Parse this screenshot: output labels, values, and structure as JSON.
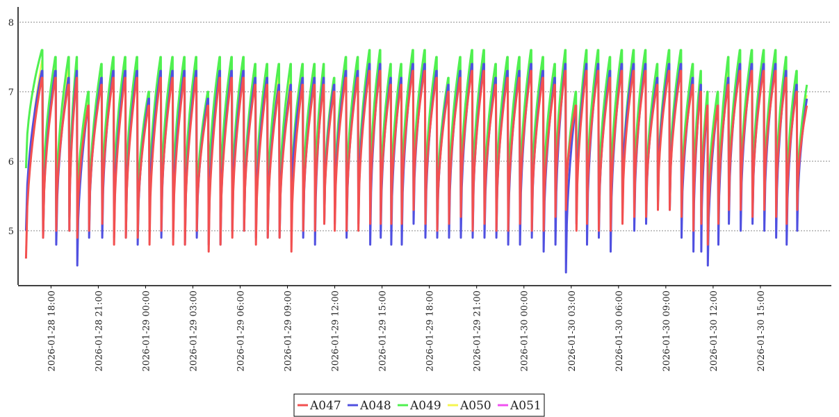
{
  "chart_data": {
    "type": "line",
    "title": "",
    "xlabel": "",
    "ylabel": "",
    "grid": {
      "y": true,
      "x": false,
      "style": "dotted"
    },
    "legend_position": "bottom-center",
    "y_range": [
      4.22,
      8.22
    ],
    "y_ticks": [
      5,
      6,
      7,
      8
    ],
    "x_range": [
      "2026-01-28 16:00",
      "2026-01-30 19:30"
    ],
    "x_tick_labels": [
      "2026-01-28 18:00",
      "2026-01-28 21:00",
      "2026-01-29 00:00",
      "2026-01-29 03:00",
      "2026-01-29 06:00",
      "2026-01-29 09:00",
      "2026-01-29 12:00",
      "2026-01-29 15:00",
      "2026-01-29 18:00",
      "2026-01-29 21:00",
      "2026-01-30 00:00",
      "2026-01-30 03:00",
      "2026-01-30 06:00",
      "2026-01-30 09:00",
      "2026-01-30 12:00",
      "2026-01-30 15:00"
    ],
    "series": [
      {
        "name": "A047",
        "color": "#f25050"
      },
      {
        "name": "A048",
        "color": "#5050e0"
      },
      {
        "name": "A049",
        "color": "#50f050"
      },
      {
        "name": "A050",
        "color": "#f5f550"
      },
      {
        "name": "A051",
        "color": "#f050f0"
      }
    ],
    "cycles": [
      {
        "t": "2026-01-28 16:25",
        "r": 6.9,
        "A047": [
          4.6,
          7.2
        ],
        "A048": [
          5.0,
          7.3
        ],
        "A049": [
          5.9,
          7.6
        ]
      },
      {
        "t": "2026-01-28 17:30",
        "r": 7.0,
        "A047": [
          4.9,
          7.2
        ],
        "A048": [
          4.9,
          7.3
        ],
        "A049": [
          5.3,
          7.5
        ]
      },
      {
        "t": "2026-01-28 18:20",
        "r": 7.0,
        "A047": [
          5.0,
          7.1
        ],
        "A048": [
          4.8,
          7.2
        ],
        "A049": [
          5.2,
          7.5
        ]
      },
      {
        "t": "2026-01-28 19:10",
        "r": 7.1,
        "A047": [
          5.0,
          7.2
        ],
        "A048": [
          5.0,
          7.3
        ],
        "A049": [
          5.2,
          7.5
        ]
      },
      {
        "t": "2026-01-28 19:40",
        "r": 7.0,
        "A047": [
          4.9,
          6.8
        ],
        "A048": [
          4.5,
          6.8
        ],
        "A049": [
          5.2,
          7.0
        ]
      },
      {
        "t": "2026-01-28 20:25",
        "r": 7.1,
        "A047": [
          5.0,
          7.1
        ],
        "A048": [
          4.9,
          7.2
        ],
        "A049": [
          5.1,
          7.4
        ]
      },
      {
        "t": "2026-01-28 21:15",
        "r": 7.1,
        "A047": [
          5.1,
          7.2
        ],
        "A048": [
          4.9,
          7.3
        ],
        "A049": [
          5.3,
          7.5
        ]
      },
      {
        "t": "2026-01-28 22:00",
        "r": 7.1,
        "A047": [
          4.8,
          7.2
        ],
        "A048": [
          4.9,
          7.3
        ],
        "A049": [
          5.3,
          7.5
        ]
      },
      {
        "t": "2026-01-28 22:45",
        "r": 7.1,
        "A047": [
          4.9,
          7.2
        ],
        "A048": [
          4.9,
          7.3
        ],
        "A049": [
          5.3,
          7.5
        ]
      },
      {
        "t": "2026-01-28 23:30",
        "r": 7.0,
        "A047": [
          4.9,
          6.8
        ],
        "A048": [
          4.8,
          6.9
        ],
        "A049": [
          5.2,
          7.0
        ]
      },
      {
        "t": "2026-01-29 00:15",
        "r": 7.1,
        "A047": [
          4.8,
          7.2
        ],
        "A048": [
          5.0,
          7.3
        ],
        "A049": [
          5.3,
          7.5
        ]
      },
      {
        "t": "2026-01-29 01:00",
        "r": 7.1,
        "A047": [
          5.0,
          7.2
        ],
        "A048": [
          4.9,
          7.3
        ],
        "A049": [
          5.3,
          7.5
        ]
      },
      {
        "t": "2026-01-29 01:45",
        "r": 7.1,
        "A047": [
          4.8,
          7.2
        ],
        "A048": [
          4.9,
          7.3
        ],
        "A049": [
          5.3,
          7.5
        ]
      },
      {
        "t": "2026-01-29 02:30",
        "r": 7.1,
        "A047": [
          4.8,
          7.2
        ],
        "A048": [
          4.8,
          7.3
        ],
        "A049": [
          5.2,
          7.5
        ]
      },
      {
        "t": "2026-01-29 03:15",
        "r": 7.0,
        "A047": [
          5.0,
          6.8
        ],
        "A048": [
          4.9,
          6.9
        ],
        "A049": [
          5.2,
          7.0
        ]
      },
      {
        "t": "2026-01-29 04:00",
        "r": 7.1,
        "A047": [
          4.7,
          7.2
        ],
        "A048": [
          4.8,
          7.3
        ],
        "A049": [
          5.3,
          7.5
        ]
      },
      {
        "t": "2026-01-29 04:45",
        "r": 7.1,
        "A047": [
          4.8,
          7.2
        ],
        "A048": [
          4.8,
          7.3
        ],
        "A049": [
          5.3,
          7.5
        ]
      },
      {
        "t": "2026-01-29 05:30",
        "r": 7.1,
        "A047": [
          4.9,
          7.2
        ],
        "A048": [
          5.0,
          7.3
        ],
        "A049": [
          5.3,
          7.5
        ]
      },
      {
        "t": "2026-01-29 06:15",
        "r": 7.0,
        "A047": [
          5.0,
          7.1
        ],
        "A048": [
          5.0,
          7.2
        ],
        "A049": [
          5.2,
          7.4
        ]
      },
      {
        "t": "2026-01-29 07:00",
        "r": 7.0,
        "A047": [
          4.8,
          7.1
        ],
        "A048": [
          4.9,
          7.2
        ],
        "A049": [
          5.2,
          7.4
        ]
      },
      {
        "t": "2026-01-29 07:45",
        "r": 7.0,
        "A047": [
          4.9,
          7.0
        ],
        "A048": [
          4.9,
          7.1
        ],
        "A049": [
          5.2,
          7.4
        ]
      },
      {
        "t": "2026-01-29 08:30",
        "r": 7.0,
        "A047": [
          4.9,
          7.0
        ],
        "A048": [
          4.9,
          7.1
        ],
        "A049": [
          5.2,
          7.4
        ]
      },
      {
        "t": "2026-01-29 09:15",
        "r": 7.0,
        "A047": [
          4.7,
          7.1
        ],
        "A048": [
          5.2,
          7.2
        ],
        "A049": [
          5.3,
          7.4
        ]
      },
      {
        "t": "2026-01-29 10:00",
        "r": 7.0,
        "A047": [
          5.0,
          7.1
        ],
        "A048": [
          4.9,
          7.2
        ],
        "A049": [
          5.3,
          7.4
        ]
      },
      {
        "t": "2026-01-29 10:45",
        "r": 7.0,
        "A047": [
          5.0,
          7.1
        ],
        "A048": [
          4.8,
          7.2
        ],
        "A049": [
          5.3,
          7.4
        ]
      },
      {
        "t": "2026-01-29 11:20",
        "r": 6.9,
        "A047": [
          5.1,
          7.0
        ],
        "A048": [
          5.1,
          7.1
        ],
        "A049": [
          5.3,
          7.2
        ]
      },
      {
        "t": "2026-01-29 12:00",
        "r": 7.0,
        "A047": [
          5.0,
          7.2
        ],
        "A048": [
          5.1,
          7.3
        ],
        "A049": [
          5.3,
          7.5
        ]
      },
      {
        "t": "2026-01-29 12:45",
        "r": 7.1,
        "A047": [
          5.0,
          7.2
        ],
        "A048": [
          4.9,
          7.3
        ],
        "A049": [
          5.3,
          7.5
        ]
      },
      {
        "t": "2026-01-29 13:30",
        "r": 7.1,
        "A047": [
          5.0,
          7.3
        ],
        "A048": [
          5.1,
          7.4
        ],
        "A049": [
          5.3,
          7.6
        ]
      },
      {
        "t": "2026-01-29 14:15",
        "r": 7.1,
        "A047": [
          5.1,
          7.3
        ],
        "A048": [
          4.8,
          7.4
        ],
        "A049": [
          5.4,
          7.6
        ]
      },
      {
        "t": "2026-01-29 14:55",
        "r": 7.0,
        "A047": [
          5.1,
          7.1
        ],
        "A048": [
          4.9,
          7.2
        ],
        "A049": [
          5.3,
          7.4
        ]
      },
      {
        "t": "2026-01-29 15:35",
        "r": 7.0,
        "A047": [
          5.1,
          7.1
        ],
        "A048": [
          4.8,
          7.2
        ],
        "A049": [
          5.3,
          7.4
        ]
      },
      {
        "t": "2026-01-29 16:15",
        "r": 7.1,
        "A047": [
          5.1,
          7.3
        ],
        "A048": [
          4.8,
          7.4
        ],
        "A049": [
          5.3,
          7.6
        ]
      },
      {
        "t": "2026-01-29 17:00",
        "r": 7.1,
        "A047": [
          5.3,
          7.3
        ],
        "A048": [
          5.1,
          7.4
        ],
        "A049": [
          5.5,
          7.6
        ]
      },
      {
        "t": "2026-01-29 17:45",
        "r": 7.0,
        "A047": [
          5.1,
          7.2
        ],
        "A048": [
          4.9,
          7.3
        ],
        "A049": [
          5.3,
          7.5
        ]
      },
      {
        "t": "2026-01-29 18:30",
        "r": 7.0,
        "A047": [
          5.0,
          7.0
        ],
        "A048": [
          4.9,
          7.1
        ],
        "A049": [
          5.2,
          7.2
        ]
      },
      {
        "t": "2026-01-29 19:15",
        "r": 7.1,
        "A047": [
          5.1,
          7.2
        ],
        "A048": [
          4.9,
          7.3
        ],
        "A049": [
          5.3,
          7.5
        ]
      },
      {
        "t": "2026-01-29 20:00",
        "r": 7.1,
        "A047": [
          5.2,
          7.3
        ],
        "A048": [
          4.9,
          7.4
        ],
        "A049": [
          5.4,
          7.6
        ]
      },
      {
        "t": "2026-01-29 20:45",
        "r": 7.1,
        "A047": [
          5.0,
          7.3
        ],
        "A048": [
          4.9,
          7.4
        ],
        "A049": [
          5.3,
          7.6
        ]
      },
      {
        "t": "2026-01-29 21:30",
        "r": 7.0,
        "A047": [
          5.1,
          7.1
        ],
        "A048": [
          4.9,
          7.2
        ],
        "A049": [
          5.3,
          7.4
        ]
      },
      {
        "t": "2026-01-29 22:15",
        "r": 7.1,
        "A047": [
          5.0,
          7.2
        ],
        "A048": [
          4.9,
          7.3
        ],
        "A049": [
          5.3,
          7.5
        ]
      },
      {
        "t": "2026-01-29 23:00",
        "r": 7.1,
        "A047": [
          5.0,
          7.2
        ],
        "A048": [
          4.8,
          7.3
        ],
        "A049": [
          5.3,
          7.5
        ]
      },
      {
        "t": "2026-01-29 23:45",
        "r": 7.1,
        "A047": [
          5.1,
          7.3
        ],
        "A048": [
          4.8,
          7.4
        ],
        "A049": [
          5.3,
          7.6
        ]
      },
      {
        "t": "2026-01-30 00:30",
        "r": 7.1,
        "A047": [
          5.0,
          7.2
        ],
        "A048": [
          4.9,
          7.3
        ],
        "A049": [
          5.3,
          7.5
        ]
      },
      {
        "t": "2026-01-30 01:15",
        "r": 7.0,
        "A047": [
          5.0,
          7.1
        ],
        "A048": [
          4.7,
          7.2
        ],
        "A049": [
          5.3,
          7.4
        ]
      },
      {
        "t": "2026-01-30 02:00",
        "r": 7.1,
        "A047": [
          5.2,
          7.3
        ],
        "A048": [
          4.8,
          7.4
        ],
        "A049": [
          5.4,
          7.6
        ]
      },
      {
        "t": "2026-01-30 02:40",
        "r": 6.9,
        "A047": [
          5.3,
          6.8
        ],
        "A048": [
          4.4,
          6.8
        ],
        "A049": [
          5.2,
          7.0
        ]
      },
      {
        "t": "2026-01-30 03:20",
        "r": 7.1,
        "A047": [
          5.0,
          7.3
        ],
        "A048": [
          5.1,
          7.4
        ],
        "A049": [
          5.3,
          7.6
        ]
      },
      {
        "t": "2026-01-30 04:00",
        "r": 7.1,
        "A047": [
          5.1,
          7.3
        ],
        "A048": [
          4.8,
          7.4
        ],
        "A049": [
          5.3,
          7.6
        ]
      },
      {
        "t": "2026-01-30 04:45",
        "r": 7.1,
        "A047": [
          5.0,
          7.2
        ],
        "A048": [
          4.9,
          7.3
        ],
        "A049": [
          5.3,
          7.5
        ]
      },
      {
        "t": "2026-01-30 05:30",
        "r": 7.1,
        "A047": [
          5.0,
          7.3
        ],
        "A048": [
          4.7,
          7.4
        ],
        "A049": [
          5.3,
          7.6
        ]
      },
      {
        "t": "2026-01-30 06:15",
        "r": 7.1,
        "A047": [
          5.1,
          7.3
        ],
        "A048": [
          5.4,
          7.4
        ],
        "A049": [
          5.3,
          7.6
        ]
      },
      {
        "t": "2026-01-30 07:00",
        "r": 7.1,
        "A047": [
          5.2,
          7.3
        ],
        "A048": [
          5.0,
          7.4
        ],
        "A049": [
          5.4,
          7.6
        ]
      },
      {
        "t": "2026-01-30 07:45",
        "r": 7.0,
        "A047": [
          5.2,
          7.1
        ],
        "A048": [
          5.1,
          7.2
        ],
        "A049": [
          5.3,
          7.4
        ]
      },
      {
        "t": "2026-01-30 08:30",
        "r": 7.1,
        "A047": [
          5.3,
          7.3
        ],
        "A048": [
          5.4,
          7.4
        ],
        "A049": [
          5.4,
          7.6
        ]
      },
      {
        "t": "2026-01-30 09:15",
        "r": 7.1,
        "A047": [
          5.3,
          7.3
        ],
        "A048": [
          5.3,
          7.4
        ],
        "A049": [
          5.5,
          7.6
        ]
      },
      {
        "t": "2026-01-30 10:00",
        "r": 7.0,
        "A047": [
          5.2,
          7.1
        ],
        "A048": [
          4.9,
          7.2
        ],
        "A049": [
          5.3,
          7.4
        ]
      },
      {
        "t": "2026-01-30 10:45",
        "r": 7.0,
        "A047": [
          5.0,
          7.0
        ],
        "A048": [
          4.7,
          7.1
        ],
        "A049": [
          5.2,
          7.3
        ]
      },
      {
        "t": "2026-01-30 11:15",
        "r": 6.9,
        "A047": [
          5.1,
          6.8
        ],
        "A048": [
          4.7,
          6.8
        ],
        "A049": [
          5.2,
          7.0
        ]
      },
      {
        "t": "2026-01-30 11:40",
        "r": 6.9,
        "A047": [
          4.8,
          6.8
        ],
        "A048": [
          4.5,
          6.8
        ],
        "A049": [
          5.1,
          7.0
        ]
      },
      {
        "t": "2026-01-30 12:20",
        "r": 7.0,
        "A047": [
          5.1,
          7.1
        ],
        "A048": [
          4.8,
          7.2
        ],
        "A049": [
          5.2,
          7.5
        ]
      },
      {
        "t": "2026-01-30 13:00",
        "r": 7.1,
        "A047": [
          5.3,
          7.3
        ],
        "A048": [
          5.1,
          7.4
        ],
        "A049": [
          5.4,
          7.6
        ]
      },
      {
        "t": "2026-01-30 13:45",
        "r": 7.1,
        "A047": [
          5.3,
          7.3
        ],
        "A048": [
          5.0,
          7.4
        ],
        "A049": [
          5.4,
          7.6
        ]
      },
      {
        "t": "2026-01-30 14:30",
        "r": 7.1,
        "A047": [
          5.2,
          7.3
        ],
        "A048": [
          5.1,
          7.4
        ],
        "A049": [
          5.4,
          7.6
        ]
      },
      {
        "t": "2026-01-30 15:15",
        "r": 7.1,
        "A047": [
          5.3,
          7.3
        ],
        "A048": [
          5.0,
          7.4
        ],
        "A049": [
          5.4,
          7.6
        ]
      },
      {
        "t": "2026-01-30 16:00",
        "r": 7.1,
        "A047": [
          5.2,
          7.2
        ],
        "A048": [
          4.9,
          7.3
        ],
        "A049": [
          5.4,
          7.5
        ]
      },
      {
        "t": "2026-01-30 16:40",
        "r": 7.0,
        "A047": [
          5.1,
          7.0
        ],
        "A048": [
          4.8,
          7.1
        ],
        "A049": [
          5.3,
          7.3
        ]
      },
      {
        "t": "2026-01-30 17:20",
        "r": 6.9,
        "A047": [
          5.3,
          6.8
        ],
        "A048": [
          5.0,
          6.9
        ],
        "A049": [
          5.3,
          7.1
        ]
      }
    ]
  }
}
